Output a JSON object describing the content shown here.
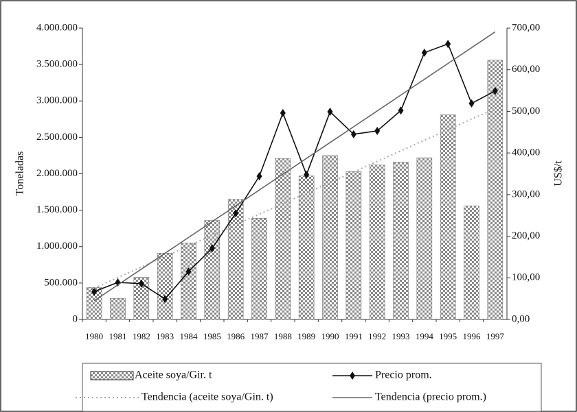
{
  "chart_data": {
    "type": "bar",
    "categories": [
      "1980",
      "1981",
      "1982",
      "1983",
      "1984",
      "1985",
      "1986",
      "1987",
      "1988",
      "1989",
      "1990",
      "1991",
      "1992",
      "1993",
      "1994",
      "1995",
      "1996",
      "1997"
    ],
    "y_label": "Toneladas",
    "y2_label": "US$/t",
    "ylim": [
      0,
      4000000
    ],
    "yticks": [
      {
        "value": 0,
        "label": "0"
      },
      {
        "value": 500000,
        "label": "500.000"
      },
      {
        "value": 1000000,
        "label": "1.000.000"
      },
      {
        "value": 1500000,
        "label": "1.500.000"
      },
      {
        "value": 2000000,
        "label": "2.000.000"
      },
      {
        "value": 2500000,
        "label": "2.500.000"
      },
      {
        "value": 3000000,
        "label": "3.000.000"
      },
      {
        "value": 3500000,
        "label": "3.500.000"
      },
      {
        "value": 4000000,
        "label": "4.000.000"
      }
    ],
    "y2lim": [
      0,
      700
    ],
    "y2ticks": [
      {
        "value": 0,
        "label": "0,00"
      },
      {
        "value": 100,
        "label": "100,00"
      },
      {
        "value": 200,
        "label": "200,00"
      },
      {
        "value": 300,
        "label": "300,00"
      },
      {
        "value": 400,
        "label": "400,00"
      },
      {
        "value": 500,
        "label": "500,00"
      },
      {
        "value": 600,
        "label": "600,00"
      },
      {
        "value": 700,
        "label": "700,00"
      }
    ],
    "series": [
      {
        "name": "Aceite soya/Gir. t",
        "type": "bar",
        "color": "#8a8a8a",
        "values": [
          440000,
          290000,
          580000,
          910000,
          1050000,
          1360000,
          1650000,
          1390000,
          2210000,
          1970000,
          2250000,
          2030000,
          2120000,
          2160000,
          2220000,
          2810000,
          1560000,
          3560000
        ]
      },
      {
        "name": "Precio prom.",
        "type": "line",
        "axis": "y2",
        "color": "#111111",
        "marker": "diamond",
        "values": [
          67,
          89,
          86,
          49,
          115,
          171,
          255,
          344,
          496,
          348,
          499,
          445,
          453,
          502,
          641,
          662,
          519,
          549
        ]
      },
      {
        "name": "Tendencia (aceite soya/Gin. t)",
        "type": "line",
        "color": "#aaaaaa",
        "dash": "dotted",
        "values": [
          430000,
          575000,
          720000,
          865000,
          1010000,
          1155000,
          1300000,
          1445000,
          1590000,
          1735000,
          1880000,
          2025000,
          2170000,
          2315000,
          2460000,
          2605000,
          2750000,
          2895000
        ]
      },
      {
        "name": "Tendencia (precio prom.)",
        "type": "line",
        "axis": "y2",
        "color": "#666666",
        "dash": "solid",
        "values": [
          45,
          83,
          121,
          159,
          197,
          235,
          273,
          311,
          349,
          387,
          425,
          463,
          501,
          539,
          577,
          615,
          653,
          691
        ]
      }
    ]
  }
}
